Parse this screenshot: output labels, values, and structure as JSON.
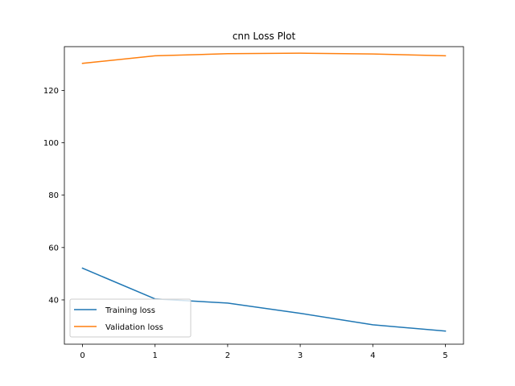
{
  "chart_data": {
    "type": "line",
    "title": "cnn Loss Plot",
    "xlabel": "",
    "ylabel": "",
    "x": [
      0,
      1,
      2,
      3,
      4,
      5
    ],
    "xticks": [
      "0",
      "1",
      "2",
      "3",
      "4",
      "5"
    ],
    "yticks": [
      "40",
      "60",
      "80",
      "100",
      "120"
    ],
    "ytick_values": [
      40,
      60,
      80,
      100,
      120
    ],
    "xlim": [
      -0.25,
      5.25
    ],
    "ylim": [
      23.1,
      136.7
    ],
    "grid": false,
    "legend_position": "lower-left",
    "series": [
      {
        "name": "Training loss",
        "color": "#1f77b4",
        "values": [
          52.1,
          40.4,
          38.8,
          34.9,
          30.5,
          28.1
        ]
      },
      {
        "name": "Validation loss",
        "color": "#ff7f0e",
        "values": [
          130.3,
          133.2,
          134.0,
          134.2,
          133.9,
          133.2
        ]
      }
    ]
  }
}
